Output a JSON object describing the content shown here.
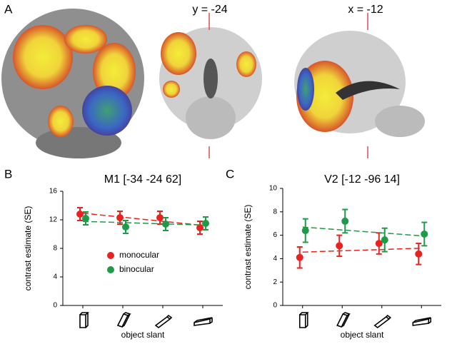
{
  "panel_a": {
    "label": "A",
    "slices": [
      "y = -24",
      "x = -12"
    ]
  },
  "chart_data": [
    {
      "type": "line",
      "panel": "B",
      "title": "M1 [-34 -24 62]",
      "categories": [
        null,
        null,
        null,
        null
      ],
      "xlabel": "object slant",
      "ylabel": "contrast estimate (SE)",
      "ylim": [
        0,
        16
      ],
      "yticks": [
        0,
        4,
        8,
        12,
        16
      ],
      "legend": "center",
      "trend": true,
      "series": [
        {
          "name": "monocular",
          "color": "#e8231f",
          "values": [
            12.8,
            12.3,
            12.3,
            10.9
          ],
          "errors": [
            0.9,
            0.9,
            0.9,
            0.9
          ]
        },
        {
          "name": "binocular",
          "color": "#1f9a48",
          "values": [
            12.2,
            11.0,
            11.4,
            11.5
          ],
          "errors": [
            0.9,
            0.9,
            0.9,
            0.9
          ]
        }
      ]
    },
    {
      "type": "line",
      "panel": "C",
      "title": "V2 [-12 -96 14]",
      "categories": [
        null,
        null,
        null,
        null
      ],
      "xlabel": "object slant",
      "ylabel": "contrast estimate (SE)",
      "ylim": [
        0,
        10
      ],
      "yticks": [
        0,
        2,
        4,
        6,
        8,
        10
      ],
      "trend": true,
      "series": [
        {
          "name": "monocular",
          "color": "#e8231f",
          "values": [
            4.1,
            5.1,
            5.3,
            4.4
          ],
          "errors": [
            0.9,
            0.9,
            0.9,
            0.9
          ]
        },
        {
          "name": "binocular",
          "color": "#1f9a48",
          "values": [
            6.4,
            7.2,
            5.6,
            6.1
          ],
          "errors": [
            1.0,
            1.0,
            1.0,
            1.0
          ]
        }
      ]
    }
  ]
}
